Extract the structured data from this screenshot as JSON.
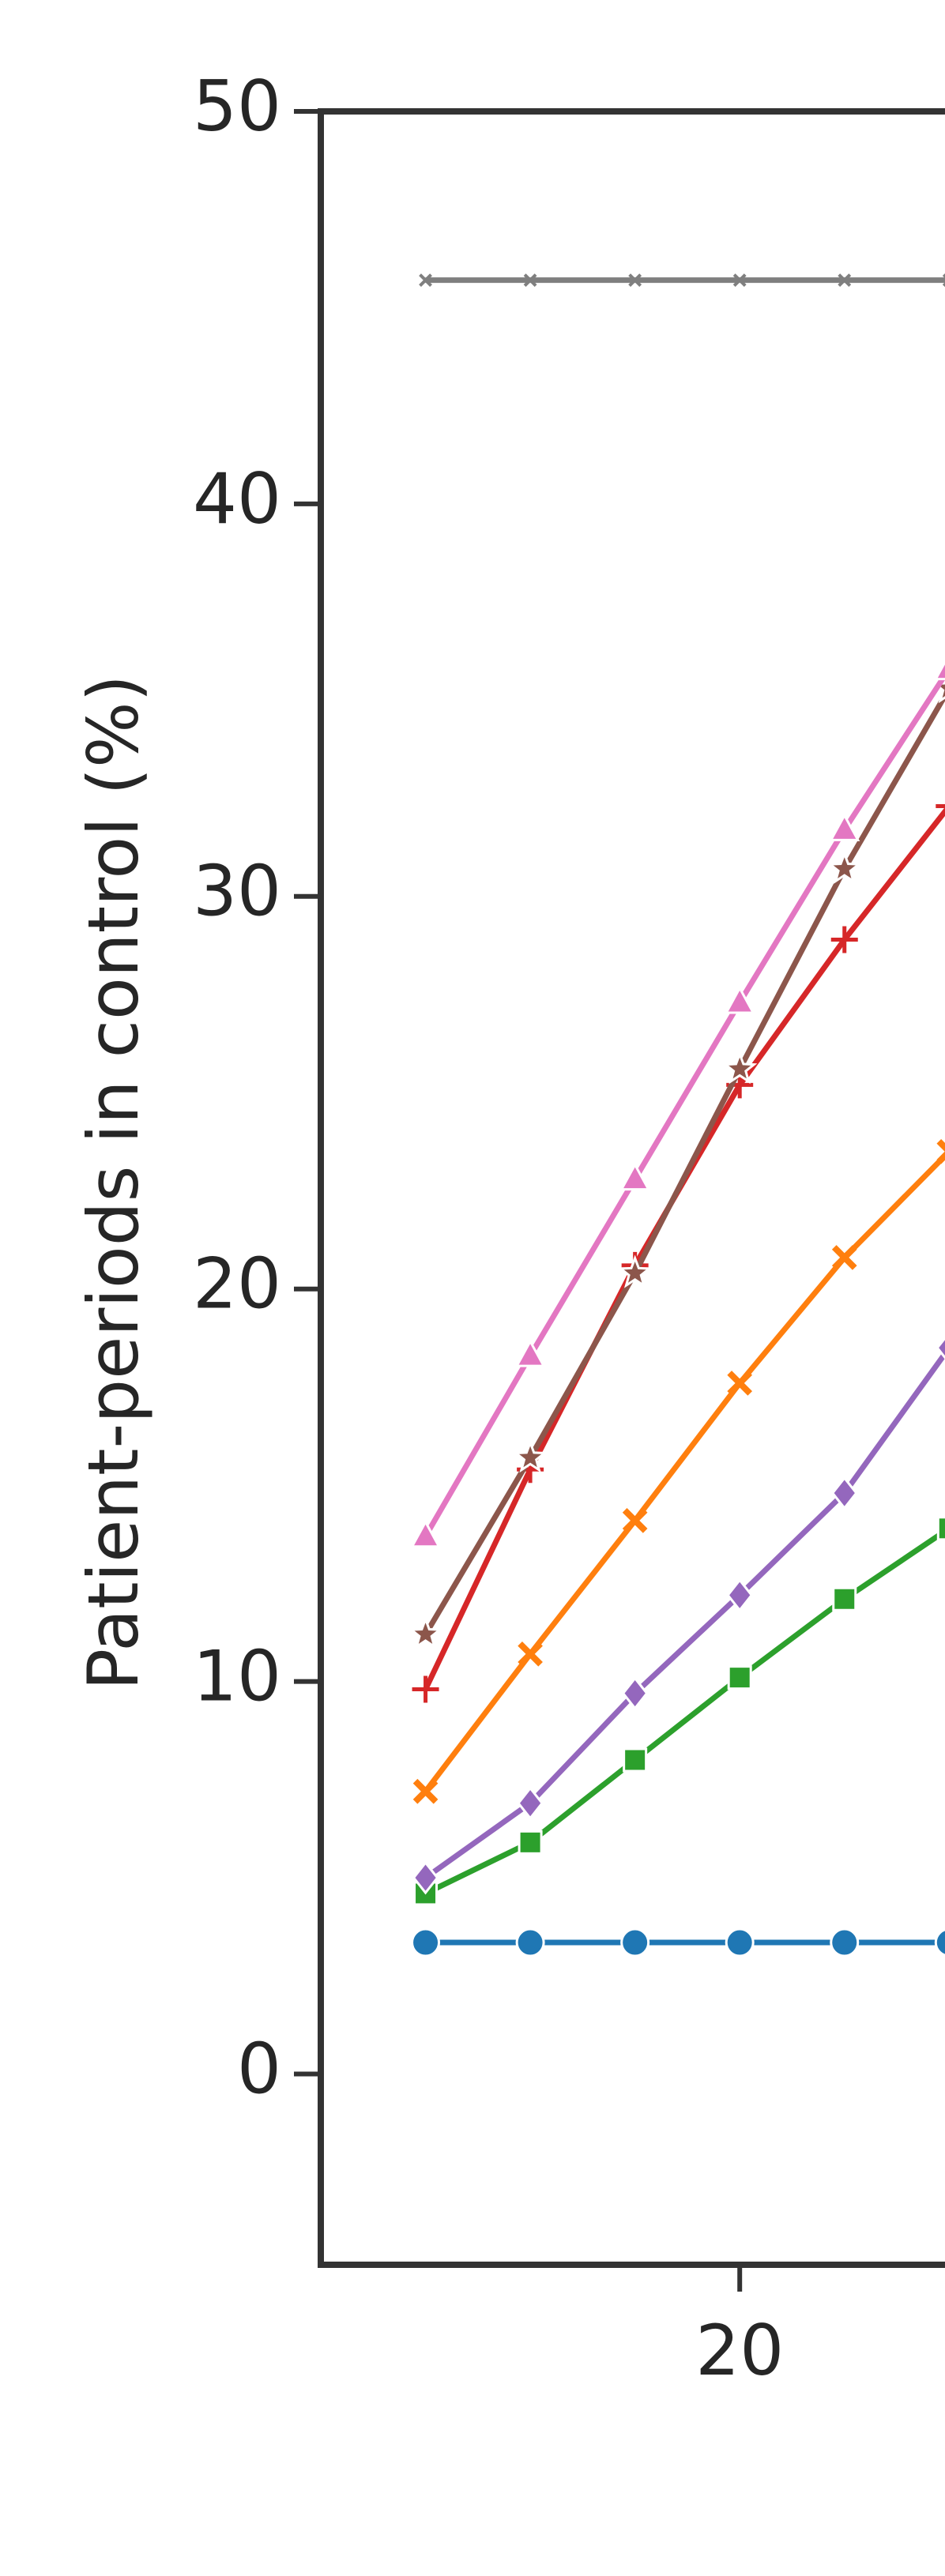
{
  "chart_data": {
    "type": "line",
    "y_label": "Patient-periods in control (%)",
    "x": [
      5,
      10,
      15,
      20,
      25,
      30
    ],
    "xlim": [
      0,
      29.8
    ],
    "xticks": [
      20
    ],
    "ylim": [
      -4.86,
      50
    ],
    "yticks": [
      0,
      10,
      20,
      30,
      40,
      50
    ],
    "series": [
      {
        "color": "#1f77b4",
        "marker": "circle",
        "values": [
          3.35,
          3.35,
          3.35,
          3.35,
          3.35,
          3.35
        ]
      },
      {
        "color": "#2ca02c",
        "marker": "square",
        "values": [
          4.6,
          5.9,
          8.0,
          10.1,
          12.1,
          13.9
        ]
      },
      {
        "color": "#9467bd",
        "marker": "diamond",
        "values": [
          5.0,
          6.9,
          9.7,
          12.2,
          14.8,
          18.5
        ]
      },
      {
        "color": "#ff7f0e",
        "marker": "x",
        "values": [
          7.2,
          10.7,
          14.1,
          17.6,
          20.8,
          23.5
        ]
      },
      {
        "color": "#d62728",
        "marker": "plus",
        "values": [
          9.8,
          15.4,
          20.6,
          25.2,
          28.9,
          32.3
        ]
      },
      {
        "color": "#8c564b",
        "marker": "star",
        "values": [
          11.2,
          15.7,
          20.4,
          25.6,
          30.7,
          35.3
        ]
      },
      {
        "color": "#e377c2",
        "marker": "triangle",
        "values": [
          13.7,
          18.3,
          22.8,
          27.3,
          31.7,
          35.8
        ]
      },
      {
        "color": "#7f7f7f",
        "marker": "smallx",
        "values": [
          45.7,
          45.7,
          45.7,
          45.7,
          45.7,
          45.7
        ]
      }
    ]
  }
}
